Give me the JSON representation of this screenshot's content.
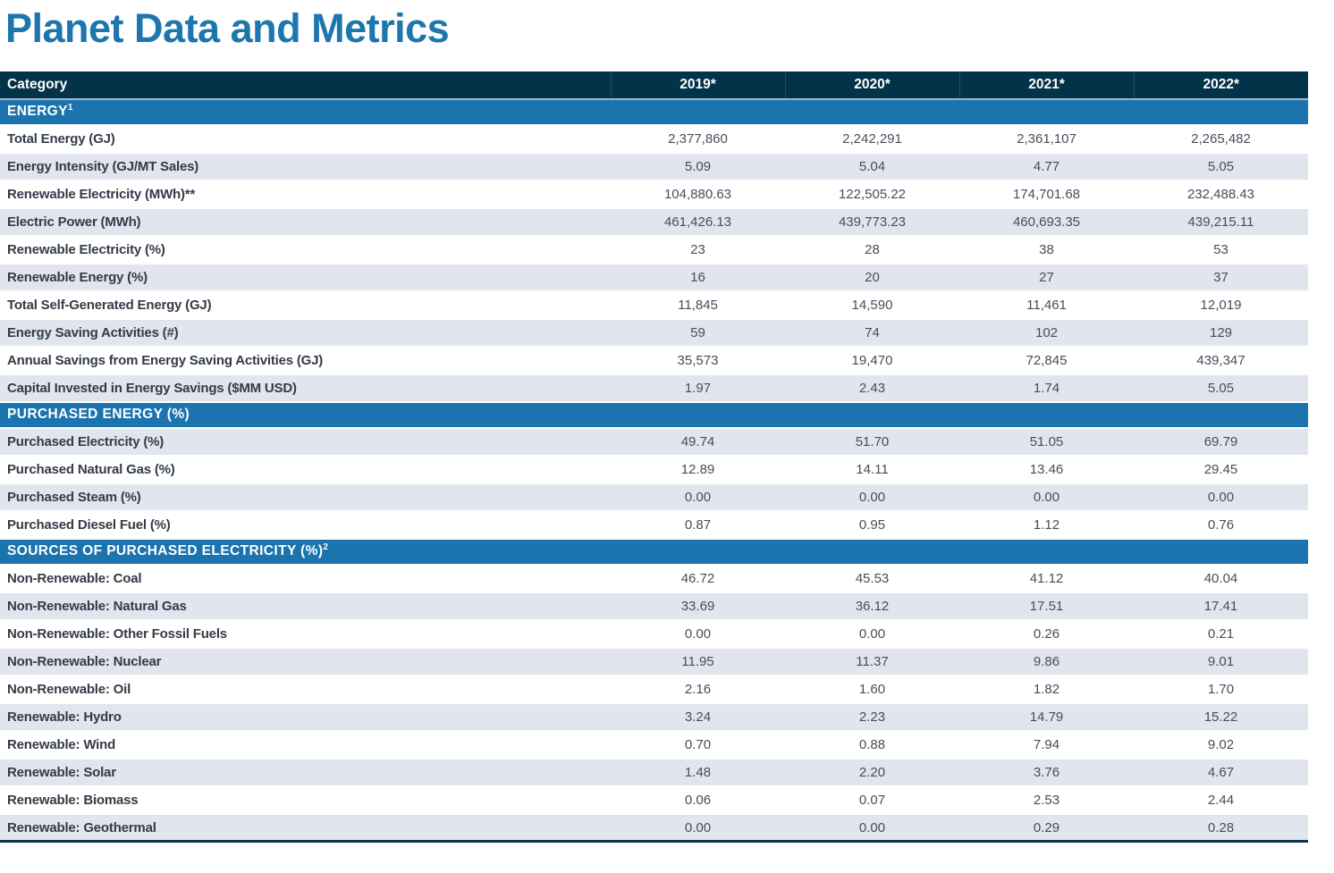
{
  "page_title": "Planet Data and Metrics",
  "colors": {
    "title_color": "#1D76AC",
    "header_bg": "#033349",
    "section_bg": "#1B74AD",
    "row_alt_bg": "#E1E5EE",
    "row_bg": "#FFFFFF",
    "category_text": "#333B46",
    "cell_text": "#474E59",
    "table_bottom": "#0B334A"
  },
  "table": {
    "header": {
      "category_label": "Category",
      "year_labels": [
        "2019*",
        "2020*",
        "2021*",
        "2022*"
      ]
    },
    "sections": [
      {
        "heading": "ENERGY",
        "superscript": "1",
        "zebra_start": "white",
        "rows": [
          {
            "label": "Total Energy (GJ)",
            "values": [
              "2,377,860",
              "2,242,291",
              "2,361,107",
              "2,265,482"
            ]
          },
          {
            "label": "Energy Intensity (GJ/MT Sales)",
            "values": [
              "5.09",
              "5.04",
              "4.77",
              "5.05"
            ]
          },
          {
            "label": "Renewable Electricity (MWh)**",
            "values": [
              "104,880.63",
              "122,505.22",
              "174,701.68",
              "232,488.43"
            ]
          },
          {
            "label": "Electric Power (MWh)",
            "values": [
              "461,426.13",
              "439,773.23",
              "460,693.35",
              "439,215.11"
            ]
          },
          {
            "label": "Renewable Electricity (%)",
            "values": [
              "23",
              "28",
              "38",
              "53"
            ]
          },
          {
            "label": "Renewable Energy (%)",
            "values": [
              "16",
              "20",
              "27",
              "37"
            ]
          },
          {
            "label": "Total Self-Generated Energy (GJ)",
            "values": [
              "11,845",
              "14,590",
              "11,461",
              "12,019"
            ]
          },
          {
            "label": "Energy Saving Activities (#)",
            "values": [
              "59",
              "74",
              "102",
              "129"
            ]
          },
          {
            "label": "Annual Savings from Energy Saving Activities (GJ)",
            "values": [
              "35,573",
              "19,470",
              "72,845",
              "439,347"
            ]
          },
          {
            "label": "Capital Invested in Energy Savings ($MM USD)",
            "values": [
              "1.97",
              "2.43",
              "1.74",
              "5.05"
            ]
          }
        ]
      },
      {
        "heading": "PURCHASED ENERGY (%)",
        "superscript": "",
        "zebra_start": "shaded",
        "rows": [
          {
            "label": "Purchased Electricity (%)",
            "values": [
              "49.74",
              "51.70",
              "51.05",
              "69.79"
            ]
          },
          {
            "label": "Purchased Natural Gas (%)",
            "values": [
              "12.89",
              "14.11",
              "13.46",
              "29.45"
            ]
          },
          {
            "label": "Purchased Steam (%)",
            "values": [
              "0.00",
              "0.00",
              "0.00",
              "0.00"
            ]
          },
          {
            "label": "Purchased Diesel Fuel (%)",
            "values": [
              "0.87",
              "0.95",
              "1.12",
              "0.76"
            ]
          }
        ]
      },
      {
        "heading": "SOURCES OF PURCHASED ELECTRICITY (%)",
        "superscript": "2",
        "zebra_start": "white",
        "rows": [
          {
            "label": "Non-Renewable: Coal",
            "values": [
              "46.72",
              "45.53",
              "41.12",
              "40.04"
            ]
          },
          {
            "label": "Non-Renewable: Natural Gas",
            "values": [
              "33.69",
              "36.12",
              "17.51",
              "17.41"
            ]
          },
          {
            "label": "Non-Renewable: Other Fossil Fuels",
            "values": [
              "0.00",
              "0.00",
              "0.26",
              "0.21"
            ]
          },
          {
            "label": "Non-Renewable: Nuclear",
            "values": [
              "11.95",
              "11.37",
              "9.86",
              "9.01"
            ]
          },
          {
            "label": "Non-Renewable: Oil",
            "values": [
              "2.16",
              "1.60",
              "1.82",
              "1.70"
            ]
          },
          {
            "label": "Renewable: Hydro",
            "values": [
              "3.24",
              "2.23",
              "14.79",
              "15.22"
            ]
          },
          {
            "label": "Renewable: Wind",
            "values": [
              "0.70",
              "0.88",
              "7.94",
              "9.02"
            ]
          },
          {
            "label": "Renewable: Solar",
            "values": [
              "1.48",
              "2.20",
              "3.76",
              "4.67"
            ]
          },
          {
            "label": "Renewable: Biomass",
            "values": [
              "0.06",
              "0.07",
              "2.53",
              "2.44"
            ]
          },
          {
            "label": "Renewable: Geothermal",
            "values": [
              "0.00",
              "0.00",
              "0.29",
              "0.28"
            ]
          }
        ]
      }
    ]
  }
}
